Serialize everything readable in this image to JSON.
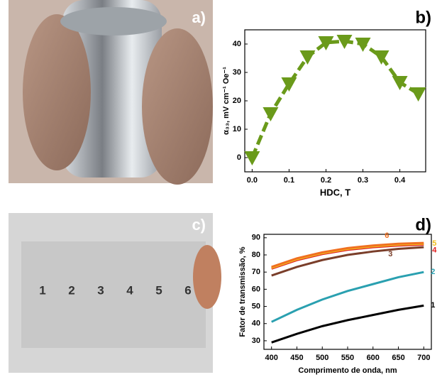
{
  "panels": {
    "a": "a)",
    "b": "b)",
    "c": "c)",
    "d": "d)"
  },
  "photo_c": {
    "labels": [
      "1",
      "2",
      "3",
      "4",
      "5",
      "6"
    ]
  },
  "chart_data": [
    {
      "type": "scatter-line",
      "xlabel": "HDC, T",
      "ylabel": "α₃₃, mV cm⁻¹ Oe⁻¹",
      "x": [
        0,
        0.05,
        0.1,
        0.15,
        0.2,
        0.25,
        0.3,
        0.35,
        0.4,
        0.45
      ],
      "series": [
        {
          "color": "#6a9a1a",
          "values": [
            0,
            15.5,
            26,
            35.5,
            40.5,
            41,
            40,
            35.5,
            26.5,
            22.5
          ]
        }
      ],
      "xlim": [
        -0.02,
        0.47
      ],
      "xticks": [
        {
          "value": 0,
          "label": "0.0"
        },
        0.1,
        0.2,
        0.3,
        0.4
      ],
      "ylim": [
        -5,
        45
      ],
      "yticks": [
        0,
        10,
        20,
        30,
        40
      ]
    },
    {
      "type": "line",
      "xlabel": "Comprimento de onda, nm",
      "ylabel": "Fator de transmissão, %",
      "x": [
        400,
        450,
        500,
        550,
        600,
        650,
        700
      ],
      "series": [
        {
          "name": "1",
          "color": "#000000",
          "values": [
            29,
            34,
            38.5,
            42,
            45,
            48,
            50.5
          ]
        },
        {
          "name": "2",
          "color": "#2aa0b0",
          "values": [
            41,
            48,
            54,
            59,
            63,
            67,
            70
          ]
        },
        {
          "name": "3",
          "color": "#7a3e2a",
          "values": [
            68,
            73,
            77,
            80,
            82,
            83.5,
            84.5
          ]
        },
        {
          "name": "4",
          "color": "#e02020",
          "values": [
            72,
            77,
            80.5,
            83,
            84.5,
            85.5,
            86
          ]
        },
        {
          "name": "5",
          "color": "#f0c020",
          "values": [
            72.5,
            77.5,
            81,
            83.5,
            85,
            86,
            86.5
          ]
        },
        {
          "name": "6",
          "color": "#f07020",
          "values": [
            73,
            78,
            81.5,
            84,
            85.5,
            86.5,
            87
          ]
        }
      ],
      "xlim": [
        385,
        715
      ],
      "xticks": [
        400,
        450,
        500,
        550,
        600,
        650,
        700
      ],
      "ylim": [
        25,
        92
      ],
      "yticks": [
        30,
        40,
        50,
        60,
        70,
        80,
        90
      ]
    }
  ]
}
